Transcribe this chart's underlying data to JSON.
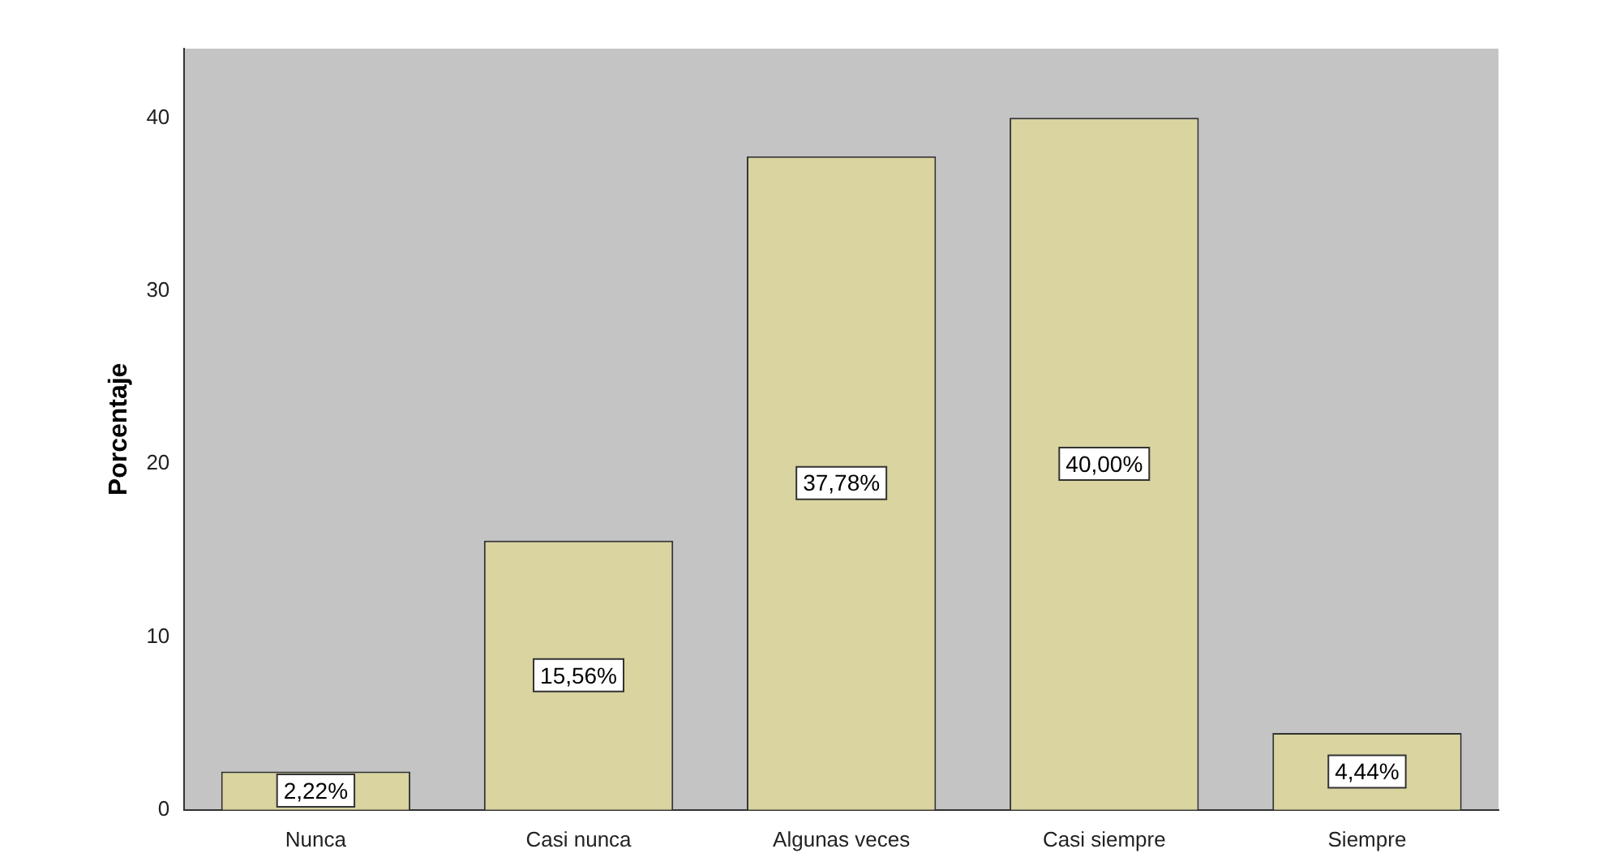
{
  "chart_data": {
    "type": "bar",
    "ylabel": "Porcentaje",
    "categories": [
      "Nunca",
      "Casi nunca",
      "Algunas veces",
      "Casi siempre",
      "Siempre"
    ],
    "values": [
      2.22,
      15.56,
      37.78,
      40.0,
      4.44
    ],
    "value_labels": [
      "2,22%",
      "15,56%",
      "37,78%",
      "40,00%",
      "4,44%"
    ],
    "color": "#d9d4a0",
    "ylim": [
      0,
      44
    ],
    "yticks": [
      0,
      10,
      20,
      30,
      40
    ],
    "grid": false,
    "legend": false
  }
}
